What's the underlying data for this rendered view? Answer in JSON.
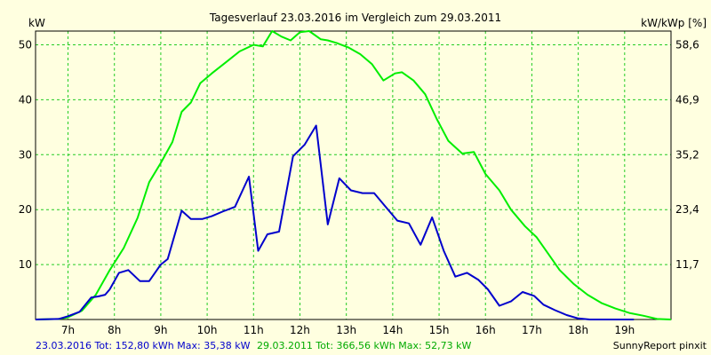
{
  "chart_data": {
    "type": "line",
    "title": "Tagesverlauf 23.03.2016 im Vergleich zum 29.03.2011",
    "ylabel_left": "kW",
    "ylabel_right": "kW/kWp [%]",
    "x_range_hours": [
      6.3,
      20.0
    ],
    "x_ticks": [
      "7h",
      "8h",
      "9h",
      "10h",
      "11h",
      "12h",
      "13h",
      "14h",
      "15h",
      "16h",
      "17h",
      "18h",
      "19h"
    ],
    "y_range_left": [
      0,
      52.5
    ],
    "y_ticks_left": [
      "10",
      "20",
      "30",
      "40",
      "50"
    ],
    "y_ticks_right": [
      "11,7",
      "23,4",
      "35,2",
      "46,9",
      "58,6"
    ],
    "grid": true,
    "series": [
      {
        "name": "23.03.2016",
        "color": "#0000cc",
        "x": [
          6.3,
          6.8,
          7.0,
          7.25,
          7.5,
          7.65,
          7.8,
          7.9,
          8.1,
          8.3,
          8.55,
          8.75,
          9.0,
          9.15,
          9.45,
          9.65,
          9.9,
          10.1,
          10.35,
          10.6,
          10.9,
          11.1,
          11.3,
          11.55,
          11.85,
          12.1,
          12.35,
          12.6,
          12.85,
          13.1,
          13.35,
          13.6,
          13.85,
          14.1,
          14.35,
          14.6,
          14.85,
          15.1,
          15.35,
          15.6,
          15.85,
          16.05,
          16.3,
          16.55,
          16.8,
          17.05,
          17.25,
          17.5,
          17.75,
          18.0,
          18.25,
          18.5,
          18.8,
          19.0,
          19.2
        ],
        "values": [
          0,
          0.1,
          0.6,
          1.4,
          4.0,
          4.2,
          4.5,
          5.5,
          8.5,
          9.0,
          7.0,
          7.0,
          10.0,
          11.0,
          19.8,
          18.3,
          18.3,
          18.8,
          19.7,
          20.5,
          26.0,
          12.5,
          15.5,
          16.0,
          29.7,
          31.8,
          35.3,
          17.3,
          25.7,
          23.5,
          23.0,
          23.0,
          20.5,
          18.0,
          17.5,
          13.6,
          18.6,
          12.5,
          7.8,
          8.5,
          7.2,
          5.5,
          2.5,
          3.3,
          5.0,
          4.3,
          2.7,
          1.7,
          0.8,
          0.2,
          0.0,
          0.0,
          0.0,
          0.0,
          0.0
        ],
        "legend": "23.03.2016 Tot: 152,80 kWh Max: 35,38 kW"
      },
      {
        "name": "29.03.2011",
        "color": "#00ee00",
        "x": [
          6.3,
          6.8,
          7.0,
          7.3,
          7.6,
          7.9,
          8.2,
          8.5,
          8.75,
          9.0,
          9.25,
          9.45,
          9.65,
          9.85,
          10.1,
          10.4,
          10.7,
          11.0,
          11.2,
          11.4,
          11.6,
          11.8,
          12.0,
          12.2,
          12.45,
          12.6,
          12.8,
          13.05,
          13.3,
          13.55,
          13.8,
          14.05,
          14.2,
          14.45,
          14.7,
          14.95,
          15.2,
          15.5,
          15.75,
          16.0,
          16.3,
          16.55,
          16.85,
          17.1,
          17.35,
          17.6,
          17.9,
          18.2,
          18.5,
          18.8,
          19.1,
          19.4,
          19.7,
          20.0
        ],
        "values": [
          0,
          0.1,
          0.4,
          1.6,
          4.5,
          9.0,
          13.0,
          18.5,
          25.0,
          28.5,
          32.3,
          37.8,
          39.5,
          43.0,
          44.8,
          46.8,
          48.8,
          50.0,
          49.7,
          52.5,
          51.5,
          50.8,
          52.3,
          52.5,
          51.0,
          50.8,
          50.3,
          49.5,
          48.3,
          46.5,
          43.5,
          44.8,
          45.0,
          43.5,
          41.0,
          36.5,
          32.5,
          30.2,
          30.5,
          26.5,
          23.5,
          20.0,
          17.0,
          15.0,
          12.0,
          9.0,
          6.5,
          4.5,
          3.0,
          2.0,
          1.2,
          0.7,
          0.1,
          0.0
        ],
        "legend": "29.03.2011 Tot: 366,56 kWh Max: 52,73 kW"
      }
    ]
  },
  "footer": {
    "credit": "SunnyReport pinxit"
  }
}
